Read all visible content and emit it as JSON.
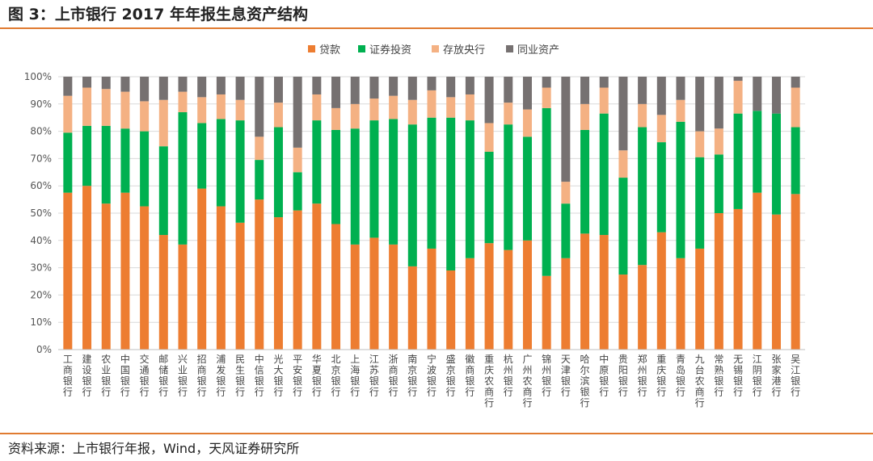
{
  "title": "图 3：上市银行 2017 年年报生息资产结构",
  "source": "资料来源：上市银行年报，Wind，天风证券研究所",
  "chart_data": {
    "type": "bar",
    "stacked": true,
    "ylim": [
      0,
      100
    ],
    "yticks": [
      "0%",
      "10%",
      "20%",
      "30%",
      "40%",
      "50%",
      "60%",
      "70%",
      "80%",
      "90%",
      "100%"
    ],
    "grid": true,
    "legend_position": "top-center",
    "categories": [
      "工商银行",
      "建设银行",
      "农业银行",
      "中国银行",
      "交通银行",
      "邮储银行",
      "兴业银行",
      "招商银行",
      "浦发银行",
      "民生银行",
      "中信银行",
      "光大银行",
      "平安银行",
      "华夏银行",
      "北京银行",
      "上海银行",
      "江苏银行",
      "浙商银行",
      "南京银行",
      "宁波银行",
      "盛京银行",
      "徽商银行",
      "重庆农商行",
      "杭州银行",
      "广州农商行",
      "锦州银行",
      "天津银行",
      "哈尔滨银行",
      "中原银行",
      "贵阳银行",
      "郑州银行",
      "重庆银行",
      "青岛银行",
      "九台农商行",
      "常熟银行",
      "无锡银行",
      "江阴银行",
      "张家港行",
      "吴江银行"
    ],
    "series": [
      {
        "name": "贷款",
        "color": "#ed7d31",
        "values": [
          57.5,
          60,
          53.5,
          57.5,
          52.5,
          42,
          38.5,
          59,
          52.5,
          46.5,
          55,
          48.5,
          51,
          53.5,
          46,
          38.5,
          41,
          38.5,
          30.5,
          37,
          29,
          33.5,
          39,
          36.5,
          40,
          27,
          33.5,
          42.5,
          42,
          27.5,
          31,
          43,
          33.5,
          37,
          50,
          51.5,
          57.5,
          49.5,
          57
        ]
      },
      {
        "name": "证券投资",
        "color": "#00b050",
        "values": [
          22,
          22,
          28.5,
          23.5,
          27.5,
          32.5,
          48.5,
          24,
          32,
          37.5,
          14.5,
          33,
          14,
          30.5,
          34.5,
          42.5,
          43,
          46,
          52,
          48,
          56,
          50.5,
          33.5,
          46,
          38,
          61.5,
          20,
          38,
          44.5,
          35.5,
          50.5,
          33,
          50,
          33.5,
          21.5,
          35,
          30,
          37,
          24.5
        ]
      },
      {
        "name": "存放央行",
        "color": "#f4b183",
        "values": [
          13.5,
          14,
          13.5,
          13.5,
          11,
          17,
          7.5,
          9.5,
          9,
          7.5,
          8.5,
          9,
          9,
          9.5,
          8,
          9,
          8,
          8.5,
          9,
          10,
          7.5,
          9.5,
          10.5,
          8,
          10,
          7.5,
          8,
          9.5,
          9.5,
          10,
          8.5,
          10,
          8,
          9.5,
          9.5,
          12,
          0,
          0,
          14.5
        ]
      },
      {
        "name": "同业资产",
        "color": "#767171",
        "values": [
          7,
          4,
          4.5,
          5.5,
          9,
          8.5,
          5.5,
          7.5,
          6.5,
          8.5,
          22,
          9.5,
          26,
          6.5,
          11.5,
          10,
          8,
          7,
          8.5,
          5,
          7.5,
          6.5,
          17,
          9.5,
          12,
          4,
          38.5,
          10,
          4,
          27,
          10,
          14,
          8.5,
          20,
          19,
          1.5,
          12.5,
          13.5,
          4
        ]
      }
    ]
  }
}
